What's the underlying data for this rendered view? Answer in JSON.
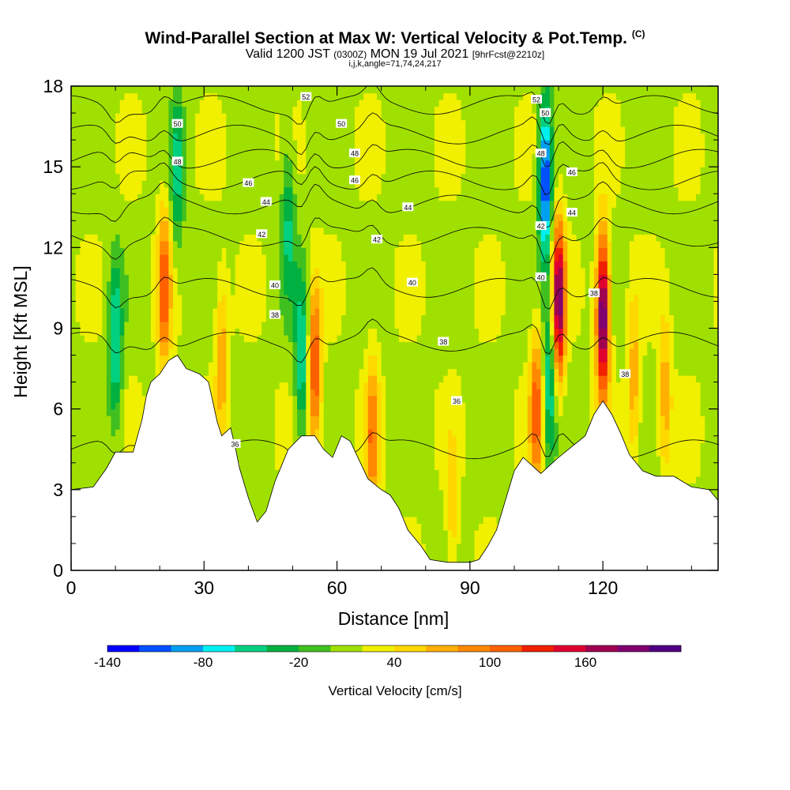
{
  "header": {
    "title": "Wind-Parallel Section at Max W: Vertical Velocity & Pot.Temp.",
    "copyright": "(C)",
    "valid_main_a": "Valid 1200 JST",
    "valid_zulu": "(0300Z)",
    "valid_main_b": "MON 19 Jul 2021",
    "forecast": "[9hrFcst@2210z]",
    "params": "i,j,k,angle=71,74,24,217"
  },
  "chart_data": {
    "type": "heatmap",
    "title": "Wind-Parallel Section at Max W: Vertical Velocity & Pot.Temp.",
    "xlabel": "Distance [nm]",
    "ylabel": "Height [Kft MSL]",
    "xlim": [
      0,
      146
    ],
    "ylim": [
      0,
      18
    ],
    "xticks": [
      0,
      30,
      60,
      90,
      120
    ],
    "yticks": [
      0,
      3,
      6,
      9,
      12,
      15,
      18
    ],
    "colorbar": {
      "label": "Vertical Velocity [cm/s]",
      "ticks": [
        -140,
        -80,
        -20,
        40,
        100,
        160
      ],
      "bins": [
        -160,
        -140,
        -120,
        -100,
        -80,
        -60,
        -40,
        -20,
        0,
        20,
        40,
        60,
        80,
        100,
        120,
        140,
        160,
        180,
        200
      ],
      "colors": [
        "#0000ff",
        "#0050ff",
        "#00a0f0",
        "#00f0f0",
        "#00d080",
        "#00b040",
        "#40c020",
        "#a0e000",
        "#f0f000",
        "#ffd800",
        "#ffb000",
        "#ff8800",
        "#ff6000",
        "#f02000",
        "#e00030",
        "#a00050",
        "#800070",
        "#500080"
      ]
    },
    "terrain_kft": [
      [
        0,
        3.0
      ],
      [
        5,
        3.1
      ],
      [
        8,
        3.8
      ],
      [
        10,
        4.4
      ],
      [
        14,
        4.4
      ],
      [
        16,
        5.6
      ],
      [
        17,
        6.5
      ],
      [
        18,
        7.0
      ],
      [
        20,
        7.3
      ],
      [
        22,
        7.8
      ],
      [
        24,
        8.0
      ],
      [
        26,
        7.5
      ],
      [
        29,
        7.3
      ],
      [
        31,
        7.0
      ],
      [
        33,
        5.5
      ],
      [
        34,
        5.0
      ],
      [
        36,
        5.3
      ],
      [
        37,
        4.6
      ],
      [
        38,
        3.8
      ],
      [
        40,
        2.7
      ],
      [
        42,
        1.8
      ],
      [
        44,
        2.2
      ],
      [
        46,
        3.3
      ],
      [
        49,
        4.5
      ],
      [
        52,
        5.0
      ],
      [
        55,
        5.0
      ],
      [
        57,
        4.5
      ],
      [
        59,
        4.2
      ],
      [
        61,
        5.0
      ],
      [
        63,
        4.8
      ],
      [
        65,
        4.1
      ],
      [
        67,
        3.4
      ],
      [
        70,
        3.0
      ],
      [
        72,
        2.8
      ],
      [
        74,
        2.3
      ],
      [
        76,
        1.5
      ],
      [
        79,
        0.9
      ],
      [
        81,
        0.4
      ],
      [
        85,
        0.3
      ],
      [
        90,
        0.3
      ],
      [
        92,
        0.4
      ],
      [
        94,
        0.9
      ],
      [
        96,
        1.5
      ],
      [
        98,
        2.6
      ],
      [
        100,
        3.7
      ],
      [
        102,
        4.2
      ],
      [
        104,
        3.9
      ],
      [
        106,
        3.6
      ],
      [
        108,
        3.9
      ],
      [
        110,
        4.2
      ],
      [
        113,
        4.6
      ],
      [
        116,
        5.0
      ],
      [
        118,
        5.8
      ],
      [
        120,
        6.3
      ],
      [
        122,
        5.8
      ],
      [
        124,
        5.1
      ],
      [
        126,
        4.3
      ],
      [
        129,
        3.7
      ],
      [
        132,
        3.5
      ],
      [
        136,
        3.5
      ],
      [
        140,
        3.1
      ],
      [
        144,
        3.0
      ],
      [
        146,
        2.6
      ]
    ],
    "vertical_velocity_cores": [
      {
        "x": 10,
        "z": 8.5,
        "w": -80
      },
      {
        "x": 21,
        "z": 10.5,
        "w": 100
      },
      {
        "x": 24,
        "z": 14.8,
        "w": -60
      },
      {
        "x": 34,
        "z": 8.0,
        "w": 60
      },
      {
        "x": 49,
        "z": 13.0,
        "w": -60
      },
      {
        "x": 52,
        "z": 8.0,
        "w": -80
      },
      {
        "x": 55,
        "z": 7.5,
        "w": 110
      },
      {
        "x": 68,
        "z": 5.0,
        "w": 80
      },
      {
        "x": 86,
        "z": 2.0,
        "w": 40
      },
      {
        "x": 105,
        "z": 6.0,
        "w": 100
      },
      {
        "x": 107,
        "z": 14.5,
        "w": -140
      },
      {
        "x": 108,
        "z": 7.0,
        "w": -80
      },
      {
        "x": 110,
        "z": 10.0,
        "w": 180
      },
      {
        "x": 120,
        "z": 9.5,
        "w": 200
      },
      {
        "x": 127,
        "z": 7.0,
        "w": 60
      },
      {
        "x": 134,
        "z": 6.5,
        "w": 60
      }
    ],
    "potential_temperature_labels": [
      {
        "x": 24,
        "z": 16.6,
        "value": "50"
      },
      {
        "x": 24,
        "z": 15.2,
        "value": "48"
      },
      {
        "x": 40,
        "z": 14.4,
        "value": "46"
      },
      {
        "x": 44,
        "z": 13.7,
        "value": "44"
      },
      {
        "x": 43,
        "z": 12.5,
        "value": "42"
      },
      {
        "x": 46,
        "z": 10.6,
        "value": "40"
      },
      {
        "x": 46,
        "z": 9.5,
        "value": "38"
      },
      {
        "x": 37,
        "z": 4.7,
        "value": "36"
      },
      {
        "x": 53,
        "z": 17.6,
        "value": "52"
      },
      {
        "x": 61,
        "z": 16.6,
        "value": "50"
      },
      {
        "x": 64,
        "z": 15.5,
        "value": "48"
      },
      {
        "x": 64,
        "z": 14.5,
        "value": "46"
      },
      {
        "x": 76,
        "z": 13.5,
        "value": "44"
      },
      {
        "x": 69,
        "z": 12.3,
        "value": "42"
      },
      {
        "x": 77,
        "z": 10.7,
        "value": "40"
      },
      {
        "x": 84,
        "z": 8.5,
        "value": "38"
      },
      {
        "x": 87,
        "z": 6.3,
        "value": "36"
      },
      {
        "x": 105,
        "z": 17.5,
        "value": "52"
      },
      {
        "x": 107,
        "z": 17.0,
        "value": "50"
      },
      {
        "x": 106,
        "z": 15.5,
        "value": "48"
      },
      {
        "x": 113,
        "z": 14.8,
        "value": "46"
      },
      {
        "x": 113,
        "z": 13.3,
        "value": "44"
      },
      {
        "x": 106,
        "z": 12.8,
        "value": "42"
      },
      {
        "x": 106,
        "z": 10.9,
        "value": "40"
      },
      {
        "x": 118,
        "z": 10.3,
        "value": "38"
      },
      {
        "x": 125,
        "z": 7.3,
        "value": "38"
      }
    ],
    "theta_levels": [
      36,
      38,
      40,
      42,
      44,
      46,
      48,
      50,
      52
    ]
  }
}
